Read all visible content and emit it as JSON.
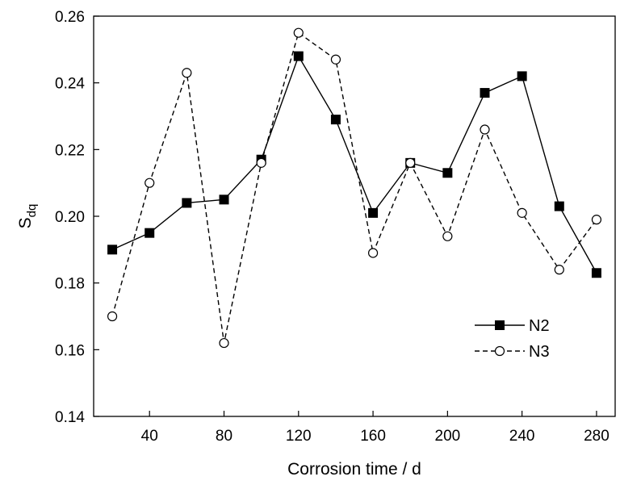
{
  "chart_data": {
    "type": "line",
    "title": "",
    "xlabel": "Corrosion time / d",
    "ylabel_main": "S",
    "ylabel_sub": "dq",
    "xlim": [
      10,
      290
    ],
    "ylim": [
      0.14,
      0.26
    ],
    "xticks": [
      40,
      80,
      120,
      160,
      200,
      240,
      280
    ],
    "xtick_labels": [
      "40",
      "80",
      "120",
      "160",
      "200",
      "240",
      "280"
    ],
    "yticks": [
      0.14,
      0.16,
      0.18,
      0.2,
      0.22,
      0.24,
      0.26
    ],
    "ytick_labels": [
      "0.14",
      "0.16",
      "0.18",
      "0.20",
      "0.22",
      "0.24",
      "0.26"
    ],
    "grid": false,
    "legend_position": "bottom-right",
    "x": [
      20,
      40,
      60,
      80,
      100,
      120,
      140,
      160,
      180,
      200,
      220,
      240,
      260,
      280
    ],
    "series": [
      {
        "name": "N2",
        "line_style": "solid",
        "marker": "filled-square",
        "color": "#000000",
        "values": [
          0.19,
          0.195,
          0.204,
          0.205,
          0.217,
          0.248,
          0.229,
          0.201,
          0.216,
          0.213,
          0.237,
          0.242,
          0.203,
          0.183
        ]
      },
      {
        "name": "N3",
        "line_style": "dashed",
        "marker": "open-circle",
        "color": "#000000",
        "values": [
          0.17,
          0.21,
          0.243,
          0.162,
          0.216,
          0.255,
          0.247,
          0.189,
          0.216,
          0.194,
          0.226,
          0.201,
          0.184,
          0.199
        ]
      }
    ]
  }
}
